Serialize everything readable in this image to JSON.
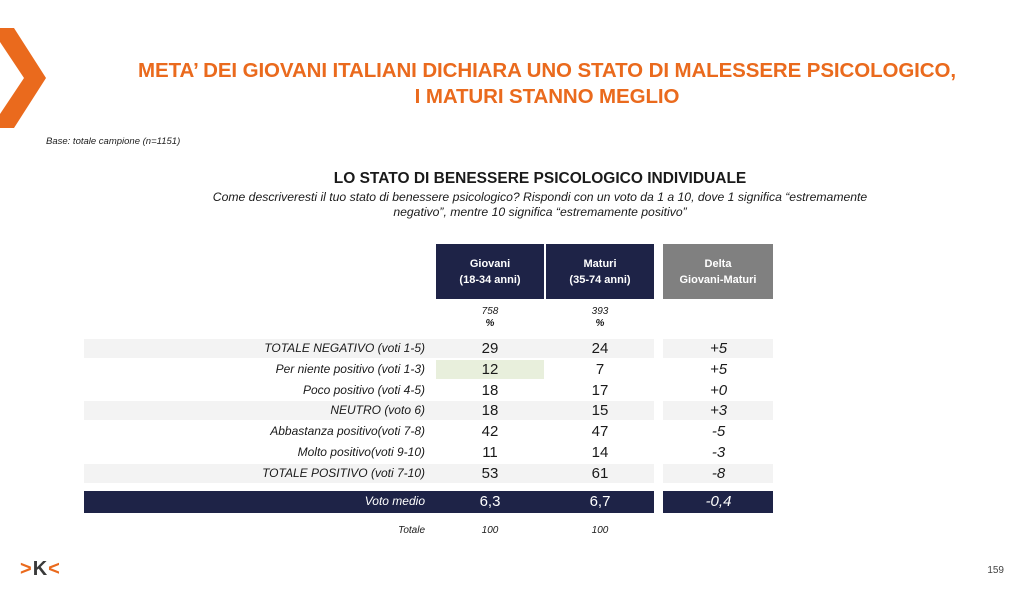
{
  "title_line1": "META’ DEI GIOVANI ITALIANI DICHIARA UNO STATO DI MALESSERE PSICOLOGICO,",
  "title_line2": "I MATURI STANNO MEGLIO",
  "base": "Base: totale campione (n=1151)",
  "subtitle": "LO STATO DI BENESSERE PSICOLOGICO INDIVIDUALE",
  "question_line1": "Come descriveresti il tuo stato di benessere psicologico? Rispondi con un voto da 1 a 10, dove 1 significa “estremamente",
  "question_line2": "negativo”, mentre 10 significa “estremamente positivo”",
  "columns": [
    {
      "line1": "Giovani",
      "line2": "(18-34 anni)",
      "sample": "758",
      "unit": "%"
    },
    {
      "line1": "Maturi",
      "line2": "(35-74 anni)",
      "sample": "393",
      "unit": "%"
    },
    {
      "line1": "Delta",
      "line2": "Giovani-Maturi"
    }
  ],
  "rows": [
    {
      "label": "TOTALE NEGATIVO (voti 1-5)",
      "giovani": "29",
      "maturi": "24",
      "delta": "+5"
    },
    {
      "label": "Per niente positivo (voti 1-3)",
      "giovani": "12",
      "maturi": "7",
      "delta": "+5"
    },
    {
      "label": "Poco positivo (voti 4-5)",
      "giovani": "18",
      "maturi": "17",
      "delta": "+0"
    },
    {
      "label": "NEUTRO (voto 6)",
      "giovani": "18",
      "maturi": "15",
      "delta": "+3"
    },
    {
      "label": "Abbastanza  positivo(voti 7-8)",
      "giovani": "42",
      "maturi": "47",
      "delta": "-5"
    },
    {
      "label": "Molto positivo(voti 9-10)",
      "giovani": "11",
      "maturi": "14",
      "delta": "-3"
    },
    {
      "label": "TOTALE POSITIVO (voti 7-10)",
      "giovani": "53",
      "maturi": "61",
      "delta": "-8"
    }
  ],
  "voto_medio": {
    "label": "Voto medio",
    "giovani": "6,3",
    "maturi": "6,7",
    "delta": "-0,4"
  },
  "totale": {
    "label": "Totale",
    "giovani": "100",
    "maturi": "100"
  },
  "logo": {
    "left": ">",
    "mid": "K",
    "right": "<"
  },
  "page_number": "159",
  "colors": {
    "accent": "#ea6a1d",
    "navy": "#1e2347",
    "grey_header": "#808080",
    "row_shade": "#f3f3f3",
    "highlight": "#e8efdc"
  }
}
